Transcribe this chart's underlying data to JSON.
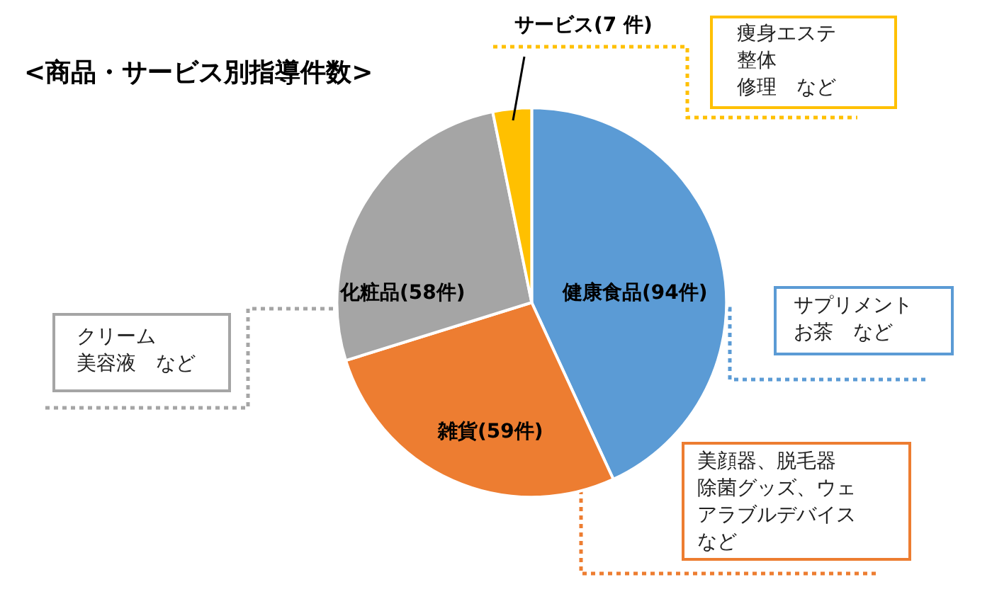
{
  "chart_data": {
    "type": "pie",
    "title": "<商品・サービス別指導件数>",
    "categories": [
      "健康食品",
      "雑貨",
      "化粧品",
      "サービス"
    ],
    "values": [
      94,
      59,
      58,
      7
    ],
    "colors": [
      "#5b9bd5",
      "#ed7d31",
      "#a5a5a5",
      "#ffc000"
    ],
    "value_labels": [
      "(94件)",
      "(59件)",
      "(58件)",
      "(7 件)"
    ],
    "annotations": [
      "サプリメント",
      "お茶　など",
      "美顔器、脱毛器",
      "除菌グッズ、ウェ",
      "アラブルデバイス",
      "など",
      "クリーム",
      "美容液　など",
      "痩身エステ",
      "整体",
      "修理　など"
    ],
    "legend": false
  }
}
